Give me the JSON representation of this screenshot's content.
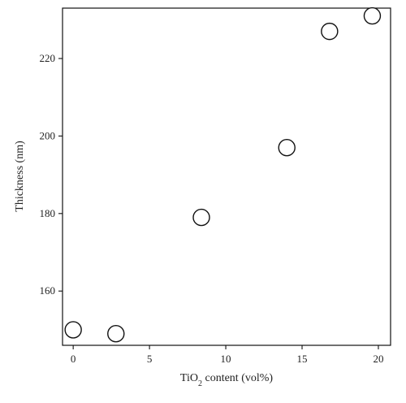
{
  "chart_data": {
    "type": "scatter",
    "title": "",
    "xlabel": {
      "prefix": "TiO",
      "subscript": "2",
      "suffix": " content (vol%)"
    },
    "ylabel": "Thickness (nm)",
    "xlim": [
      -0.7,
      20.8
    ],
    "ylim": [
      146,
      233
    ],
    "xticks": [
      0,
      5,
      10,
      15,
      20
    ],
    "yticks": [
      160,
      180,
      200,
      220
    ],
    "grid": false,
    "legend": "none",
    "marker": "open-circle",
    "colors": {
      "marker_stroke": "#111111",
      "marker_fill": "#ffffff",
      "axis": "#111111",
      "text": "#222222"
    },
    "series": [
      {
        "points": [
          {
            "x": 0,
            "y": 150
          },
          {
            "x": 2.8,
            "y": 149
          },
          {
            "x": 8.4,
            "y": 179
          },
          {
            "x": 14,
            "y": 197
          },
          {
            "x": 16.8,
            "y": 227
          },
          {
            "x": 19.6,
            "y": 231
          }
        ]
      }
    ]
  }
}
